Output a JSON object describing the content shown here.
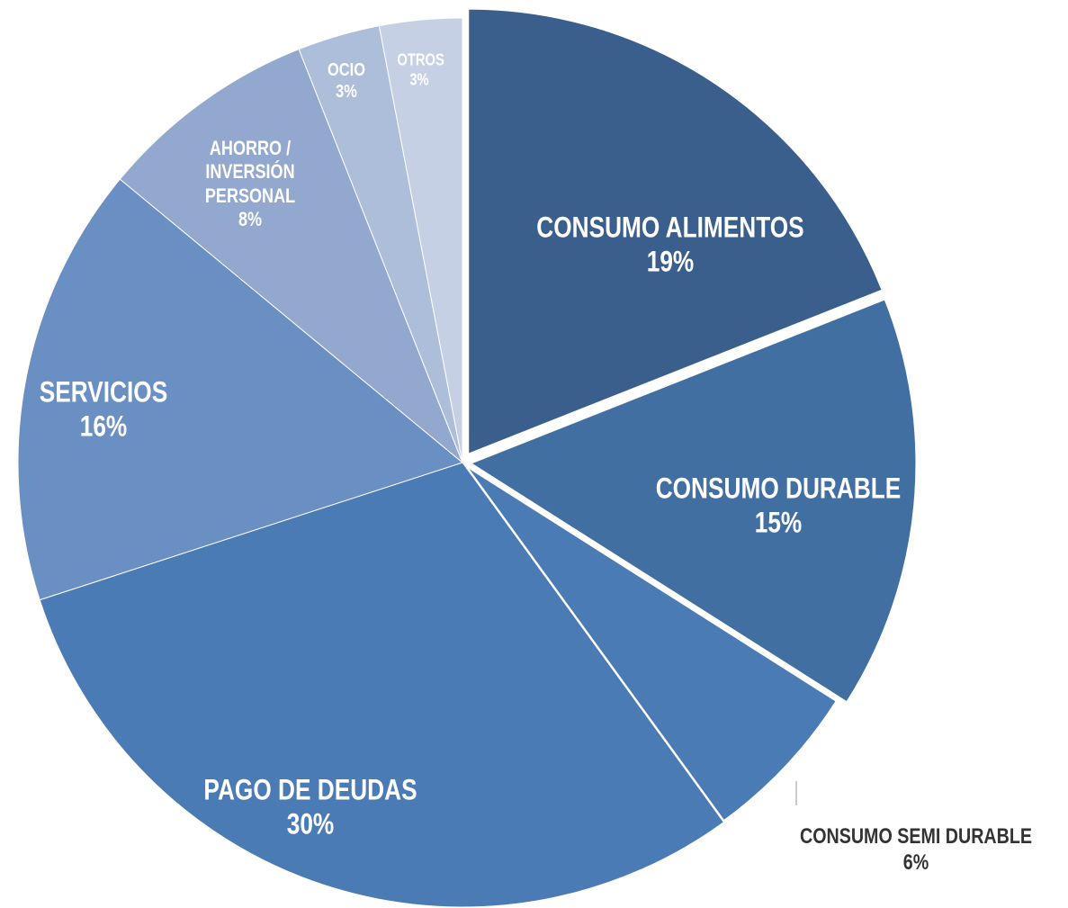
{
  "chart_data": {
    "type": "pie",
    "categories": [
      "CONSUMO ALIMENTOS",
      "CONSUMO DURABLE",
      "CONSUMO SEMI DURABLE",
      "PAGO DE DEUDAS",
      "SERVICIOS",
      "AHORRO / INVERSIÓN PERSONAL",
      "OCIO",
      "OTROS"
    ],
    "values": [
      19,
      15,
      6,
      30,
      16,
      8,
      3,
      3
    ],
    "value_labels": [
      "19%",
      "15%",
      "6%",
      "30%",
      "16%",
      "8%",
      "3%",
      "3%"
    ],
    "colors": [
      "#3a5f8c",
      "#426fa2",
      "#4a7bb5",
      "#4a7bb5",
      "#6a8fc3",
      "#93a8cf",
      "#adbedb",
      "#c5d0e4"
    ]
  }
}
